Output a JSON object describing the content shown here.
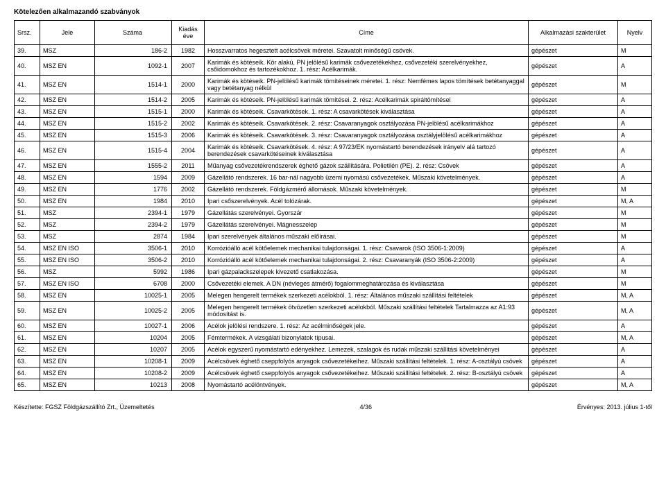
{
  "title": "Kötelezően alkalmazandó szabványok",
  "columns": [
    "Srsz.",
    "Jele",
    "Száma",
    "Kiadás éve",
    "Címe",
    "Alkalmazási szakterület",
    "Nyelv"
  ],
  "rows": [
    [
      "39.",
      "MSZ",
      "186-2",
      "1982",
      "Hosszvarratos hegesztett acélcsövek méretei. Szavatolt minőségű csövek.",
      "gépészet",
      "M"
    ],
    [
      "40.",
      "MSZ EN",
      "1092-1",
      "2007",
      "Karimák és kötéseik. Kör alakú, PN jelölésű karimák csővezetékekhez, csővezetéki szerelvényekhez, csőidomokhoz és tartozékokhoz. 1. rész: Acélkarimák.",
      "gépészet",
      "A"
    ],
    [
      "41.",
      "MSZ EN",
      "1514-1",
      "2000",
      "Karimák és kötéseik. PN-jelölésű karimák tömítéseinek méretei. 1. rész: Nemfémes lapos tömítések betétanyaggal vagy betétanyag nélkül",
      "gépészet",
      "M"
    ],
    [
      "42.",
      "MSZ EN",
      "1514-2",
      "2005",
      "Karimák és kötéseik. PN-jelölésű karimák tömítései. 2. rész: Acélkarimák spiráltömítései",
      "gépészet",
      "A"
    ],
    [
      "43.",
      "MSZ EN",
      "1515-1",
      "2000",
      "Karimák és kötéseik. Csavarkötések. 1. rész: A csavarkötések kiválasztása",
      "gépészet",
      "A"
    ],
    [
      "44.",
      "MSZ EN",
      "1515-2",
      "2002",
      "Karimák és kötéseik. Csavarkötések. 2. rész: Csavaranyagok osztályozása PN-jelölésű acélkarimákhoz",
      "gépészet",
      "A"
    ],
    [
      "45.",
      "MSZ EN",
      "1515-3",
      "2006",
      "Karimák és kötéseik. Csavarkötések. 3. rész: Csavaranyagok osztályozása osztályjelölésű acélkarimákhoz",
      "gépészet",
      "A"
    ],
    [
      "46.",
      "MSZ EN",
      "1515-4",
      "2004",
      "Karimák és kötéseik. Csavarkötések. 4. rész: A 97/23/EK nyomástartó berendezések irányelv alá tartozó berendezések csavarkötéseinek kiválasztása",
      "gépészet",
      "A"
    ],
    [
      "47.",
      "MSZ EN",
      "1555-2",
      "2011",
      "Műanyag csővezetékrendszerek éghető gázok szállítására. Polietilén (PE). 2. rész: Csövek",
      "gépészet",
      "A"
    ],
    [
      "48.",
      "MSZ EN",
      "1594",
      "2009",
      "Gázellátó rendszerek. 16 bar-nál nagyobb üzemi nyomású csővezetékek. Műszaki követelmények.",
      "gépészet",
      "A"
    ],
    [
      "49.",
      "MSZ EN",
      "1776",
      "2002",
      "Gázellátó rendszerek. Földgázmérő állomások. Műszaki követelmények.",
      "gépészet",
      "M"
    ],
    [
      "50.",
      "MSZ EN",
      "1984",
      "2010",
      "Ipari csőszerelvények. Acél tolózárak.",
      "gépészet",
      "M, A"
    ],
    [
      "51.",
      "MSZ",
      "2394-1",
      "1979",
      "Gázellátás szerelvényei. Gyorszár",
      "gépészet",
      "M"
    ],
    [
      "52.",
      "MSZ",
      "2394-2",
      "1979",
      "Gázellátás szerelvényei. Mágnesszelep",
      "gépészet",
      "M"
    ],
    [
      "53.",
      "MSZ",
      "2874",
      "1984",
      "Ipari szerelvények általános műszaki előírásai.",
      "gépészet",
      "M"
    ],
    [
      "54.",
      "MSZ EN ISO",
      "3506-1",
      "2010",
      "Korrózióálló acél kötőelemek mechanikai tulajdonságai. 1. rész: Csavarok (ISO 3506-1:2009)",
      "gépészet",
      "A"
    ],
    [
      "55.",
      "MSZ EN ISO",
      "3506-2",
      "2010",
      "Korrózióálló acél kötőelemek mechanikai tulajdonságai. 2. rész: Csavaranyák (ISO 3506-2:2009)",
      "gépészet",
      "A"
    ],
    [
      "56.",
      "MSZ",
      "5992",
      "1986",
      "Ipari gázpalackszelepek kivezető csatlakozása.",
      "gépészet",
      "M"
    ],
    [
      "57.",
      "MSZ EN ISO",
      "6708",
      "2000",
      "Csővezetéki elemek. A DN (névleges átmérő) fogalommeghatározása és kiválasztása",
      "gépészet",
      "M"
    ],
    [
      "58.",
      "MSZ EN",
      "10025-1",
      "2005",
      "Melegen hengerelt termékek szerkezeti acélokból. 1. rész: Általános műszaki szállítási feltételek",
      "gépészet",
      "M, A"
    ],
    [
      "59.",
      "MSZ EN",
      "10025-2",
      "2005",
      "Melegen hengerelt termékek ötvözetlen szerkezeti acélokból. Műszaki szállítási feltételek Tartalmazza az A1:93 módosítást is.",
      "gépészet",
      "M, A"
    ],
    [
      "60.",
      "MSZ EN",
      "10027-1",
      "2006",
      "Acélok jelölési rendszere. 1. rész: Az acélminőségek jele.",
      "gépészet",
      "A"
    ],
    [
      "61.",
      "MSZ EN",
      "10204",
      "2005",
      "Fémtermékek. A vizsgálati bizonylatok típusai.",
      "gépészet",
      "M, A"
    ],
    [
      "62.",
      "MSZ EN",
      "10207",
      "2005",
      "Acélok egyszerű nyomástartó edényekhez. Lemezek, szalagok és rudak műszaki szállítási követelményei",
      "gépészet",
      "A"
    ],
    [
      "63.",
      "MSZ EN",
      "10208-1",
      "2009",
      "Acélcsövek éghető cseppfolyós anyagok csővezetékeihez. Műszaki szállítási feltételek. 1. rész: A-osztályú csövek",
      "gépészet",
      "A"
    ],
    [
      "64.",
      "MSZ EN",
      "10208-2",
      "2009",
      "Acélcsövek éghető cseppfolyós anyagok csővezetékeihez. Műszaki szállítási feltételek. 2. rész: B-osztályú csövek",
      "gépészet",
      "A"
    ],
    [
      "65.",
      "MSZ EN",
      "10213",
      "2008",
      "Nyomástartó acélöntvények.",
      "gépészet",
      "M, A"
    ]
  ],
  "footer_left": "Készítette: FGSZ Földgázszállító Zrt., Üzemeltetés",
  "footer_center": "4/36",
  "footer_right": "Érvényes: 2013. július 1-től"
}
